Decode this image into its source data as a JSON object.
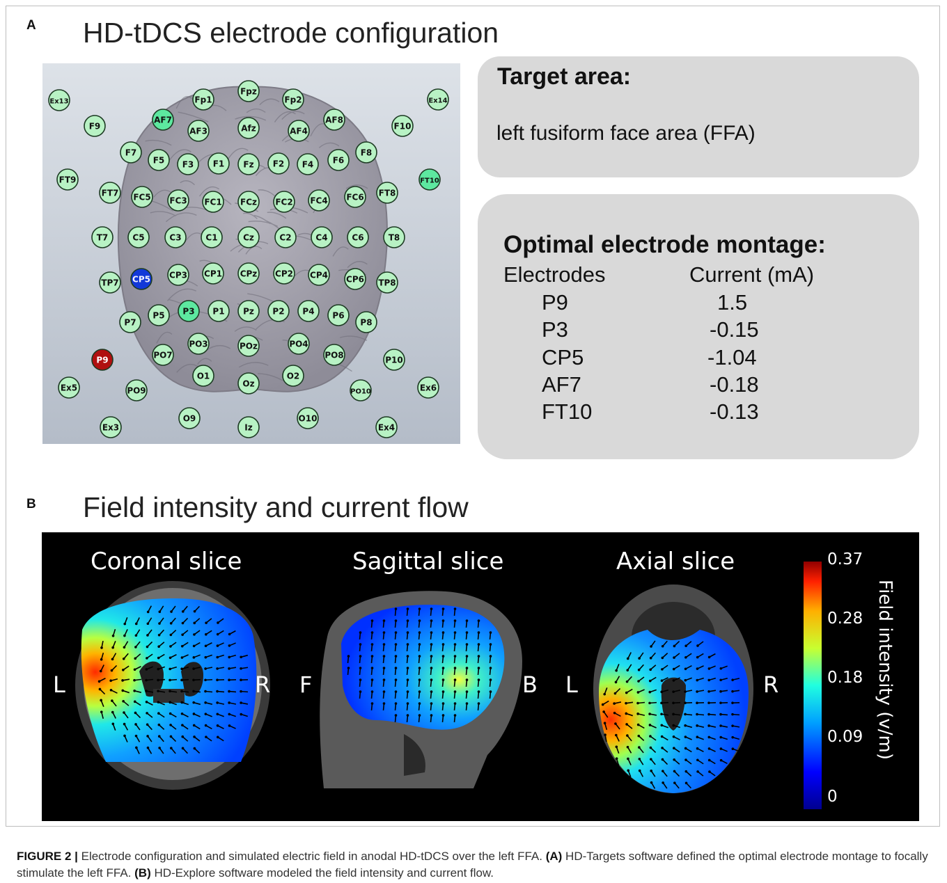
{
  "panel_a": {
    "letter": "A",
    "title": "HD-tDCS electrode configuration",
    "electrodes": [
      {
        "label": "Ex13",
        "state": "normal"
      },
      {
        "label": "Fp1",
        "state": "normal"
      },
      {
        "label": "Fpz",
        "state": "normal"
      },
      {
        "label": "Fp2",
        "state": "normal"
      },
      {
        "label": "Ex14",
        "state": "normal"
      },
      {
        "label": "F9",
        "state": "normal"
      },
      {
        "label": "AF7",
        "state": "cathode"
      },
      {
        "label": "AF3",
        "state": "normal"
      },
      {
        "label": "Afz",
        "state": "normal"
      },
      {
        "label": "AF4",
        "state": "normal"
      },
      {
        "label": "AF8",
        "state": "normal"
      },
      {
        "label": "F10",
        "state": "normal"
      },
      {
        "label": "F7",
        "state": "normal"
      },
      {
        "label": "F5",
        "state": "normal"
      },
      {
        "label": "F3",
        "state": "normal"
      },
      {
        "label": "F1",
        "state": "normal"
      },
      {
        "label": "Fz",
        "state": "normal"
      },
      {
        "label": "F2",
        "state": "normal"
      },
      {
        "label": "F4",
        "state": "normal"
      },
      {
        "label": "F6",
        "state": "normal"
      },
      {
        "label": "F8",
        "state": "normal"
      },
      {
        "label": "FT9",
        "state": "normal"
      },
      {
        "label": "FT10",
        "state": "cathode"
      },
      {
        "label": "FT7",
        "state": "normal"
      },
      {
        "label": "FC5",
        "state": "normal"
      },
      {
        "label": "FC3",
        "state": "normal"
      },
      {
        "label": "FC1",
        "state": "normal"
      },
      {
        "label": "FCz",
        "state": "normal"
      },
      {
        "label": "FC2",
        "state": "normal"
      },
      {
        "label": "FC4",
        "state": "normal"
      },
      {
        "label": "FC6",
        "state": "normal"
      },
      {
        "label": "FT8",
        "state": "normal"
      },
      {
        "label": "T7",
        "state": "normal"
      },
      {
        "label": "C5",
        "state": "normal"
      },
      {
        "label": "C3",
        "state": "normal"
      },
      {
        "label": "C1",
        "state": "normal"
      },
      {
        "label": "Cz",
        "state": "normal"
      },
      {
        "label": "C2",
        "state": "normal"
      },
      {
        "label": "C4",
        "state": "normal"
      },
      {
        "label": "C6",
        "state": "normal"
      },
      {
        "label": "T8",
        "state": "normal"
      },
      {
        "label": "TP7",
        "state": "normal"
      },
      {
        "label": "CP5",
        "state": "cathode-strong"
      },
      {
        "label": "CP3",
        "state": "normal"
      },
      {
        "label": "CP1",
        "state": "normal"
      },
      {
        "label": "CPz",
        "state": "normal"
      },
      {
        "label": "CP2",
        "state": "normal"
      },
      {
        "label": "CP4",
        "state": "normal"
      },
      {
        "label": "CP6",
        "state": "normal"
      },
      {
        "label": "TP8",
        "state": "normal"
      },
      {
        "label": "P7",
        "state": "normal"
      },
      {
        "label": "P5",
        "state": "normal"
      },
      {
        "label": "P3",
        "state": "cathode"
      },
      {
        "label": "P1",
        "state": "normal"
      },
      {
        "label": "Pz",
        "state": "normal"
      },
      {
        "label": "P2",
        "state": "normal"
      },
      {
        "label": "P4",
        "state": "normal"
      },
      {
        "label": "P6",
        "state": "normal"
      },
      {
        "label": "P8",
        "state": "normal"
      },
      {
        "label": "PO3",
        "state": "normal"
      },
      {
        "label": "PO4",
        "state": "normal"
      },
      {
        "label": "P9",
        "state": "anode"
      },
      {
        "label": "PO7",
        "state": "normal"
      },
      {
        "label": "POz",
        "state": "normal"
      },
      {
        "label": "PO8",
        "state": "normal"
      },
      {
        "label": "P10",
        "state": "normal"
      },
      {
        "label": "O1",
        "state": "normal"
      },
      {
        "label": "O2",
        "state": "normal"
      },
      {
        "label": "Ex5",
        "state": "normal"
      },
      {
        "label": "PO9",
        "state": "normal"
      },
      {
        "label": "Oz",
        "state": "normal"
      },
      {
        "label": "PO10",
        "state": "normal"
      },
      {
        "label": "Ex6",
        "state": "normal"
      },
      {
        "label": "Ex3",
        "state": "normal"
      },
      {
        "label": "O9",
        "state": "normal"
      },
      {
        "label": "Iz",
        "state": "normal"
      },
      {
        "label": "O10",
        "state": "normal"
      },
      {
        "label": "Ex4",
        "state": "normal"
      }
    ],
    "target": {
      "heading": "Target area:",
      "text": "left fusiform face area (FFA)"
    },
    "montage": {
      "heading": "Optimal electrode montage:",
      "col_electrodes": "Electrodes",
      "col_current": "Current (mA)",
      "rows": [
        {
          "electrode": "P9",
          "current": "1.5"
        },
        {
          "electrode": "P3",
          "current": "-0.15"
        },
        {
          "electrode": "CP5",
          "current": "-1.04"
        },
        {
          "electrode": "AF7",
          "current": "-0.18"
        },
        {
          "electrode": "FT10",
          "current": "-0.13"
        }
      ]
    }
  },
  "panel_b": {
    "letter": "B",
    "title": "Field intensity and current flow",
    "slices": [
      {
        "title": "Coronal slice",
        "left": "L",
        "right": "R"
      },
      {
        "title": "Sagittal slice",
        "left": "F",
        "right": "B"
      },
      {
        "title": "Axial slice",
        "left": "L",
        "right": "R"
      }
    ],
    "colorbar": {
      "label": "Field intensity (v/m)",
      "ticks": [
        "0.37",
        "0.28",
        "0.18",
        "0.09",
        "0"
      ]
    }
  },
  "caption": {
    "figure_label": "FIGURE 2 |",
    "text1": " Electrode configuration and simulated electric field in anodal HD-tDCS over the left FFA. ",
    "a_label": "(A)",
    "text2": " HD-Targets software defined the optimal electrode montage to focally stimulate the left FFA. ",
    "b_label": "(B)",
    "text3": " HD-Explore software modeled the field intensity and current flow."
  }
}
